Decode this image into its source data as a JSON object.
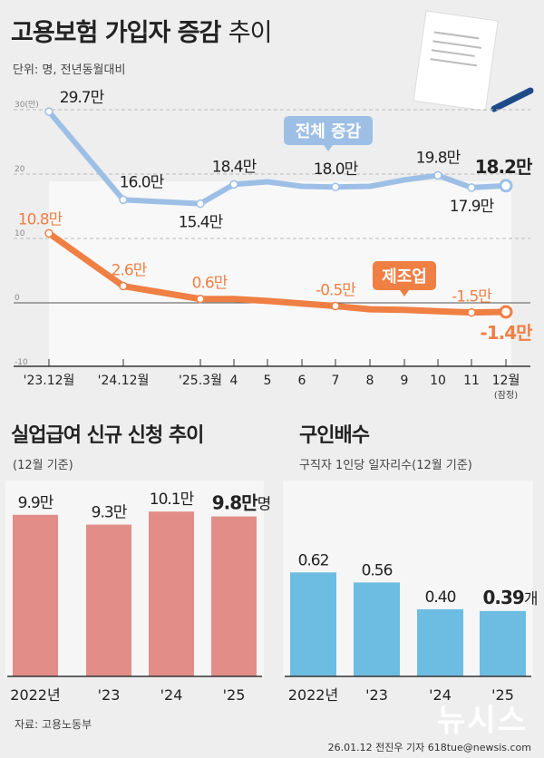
{
  "header": {
    "title_bold": "고용보험 가입자 증감",
    "title_light": "추이",
    "unit": "단위: 명, 전년동월대비"
  },
  "chart_data": [
    {
      "type": "line",
      "title": "고용보험 가입자 증감 추이",
      "categories": [
        "'23.12월",
        "'24.12월",
        "'25.3월",
        "4",
        "5",
        "6",
        "7",
        "8",
        "9",
        "10",
        "11",
        "12월"
      ],
      "category_note": "(잠정)",
      "yticks": [
        "30(만)",
        "20",
        "10",
        "0",
        "-10"
      ],
      "ylim": [
        -10,
        30
      ],
      "grid": true,
      "series": [
        {
          "name": "전체 증감",
          "color": "#9dbfe6",
          "values": [
            29.7,
            16.0,
            15.4,
            18.4,
            18.8,
            18.1,
            18.0,
            18.1,
            19.1,
            19.8,
            17.9,
            18.2
          ],
          "labels": [
            "29.7만",
            "16.0만",
            "15.4만",
            "18.4만",
            null,
            null,
            "18.0만",
            null,
            null,
            "19.8만",
            "17.9만",
            "18.2만"
          ]
        },
        {
          "name": "제조업",
          "color": "#f07f44",
          "values": [
            10.8,
            2.6,
            0.6,
            0.6,
            0.3,
            -0.1,
            -0.5,
            -1.0,
            -1.1,
            -1.3,
            -1.5,
            -1.4
          ],
          "labels": [
            "10.8만",
            "2.6만",
            "0.6만",
            null,
            null,
            null,
            "-0.5만",
            null,
            null,
            null,
            "-1.5만",
            "-1.4만"
          ]
        }
      ]
    },
    {
      "type": "bar",
      "title": "실업급여 신규 신청 추이",
      "subtitle": "(12월 기준)",
      "categories": [
        "2022년",
        "'23",
        "'24",
        "'25"
      ],
      "values": [
        9.9,
        9.3,
        10.1,
        9.8
      ],
      "labels": [
        "9.9만",
        "9.3만",
        "10.1만",
        "9.8만"
      ],
      "last_unit": "명",
      "color": "#e38d88"
    },
    {
      "type": "bar",
      "title": "구인배수",
      "subtitle": "구직자 1인당 일자리수(12월 기준)",
      "categories": [
        "2022년",
        "'23",
        "'24",
        "'25"
      ],
      "values": [
        0.62,
        0.56,
        0.4,
        0.39
      ],
      "labels": [
        "0.62",
        "0.56",
        "0.40",
        "0.39"
      ],
      "last_unit": "개",
      "color": "#6dbde3"
    }
  ],
  "footer": {
    "source": "자료: 고용노동부",
    "credit": "26.01.12 전진우 기자 618tue@newsis.com",
    "logo": "뉴시스"
  }
}
